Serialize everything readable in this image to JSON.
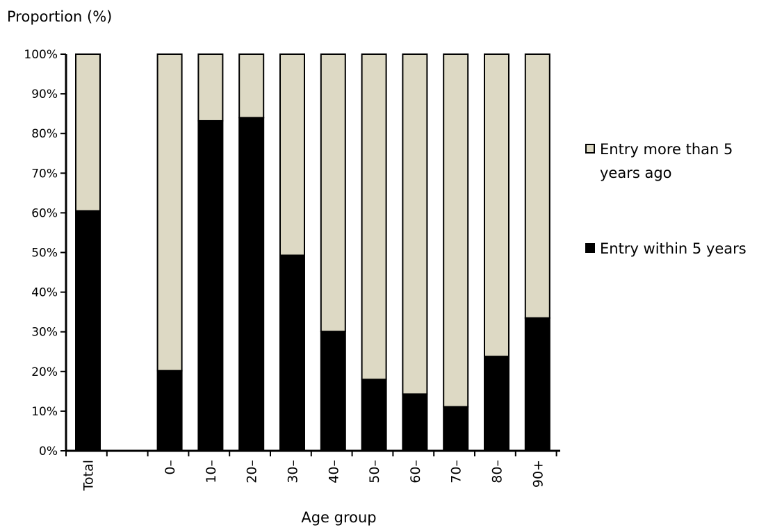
{
  "chart_data": {
    "type": "bar",
    "stacked": true,
    "ylabel": "Proportion (%)",
    "xlabel": "Age group",
    "ylim": [
      0,
      100
    ],
    "yticks": [
      "0%",
      "10%",
      "20%",
      "30%",
      "40%",
      "50%",
      "60%",
      "70%",
      "80%",
      "90%",
      "100%"
    ],
    "categories": [
      "Total",
      "0–",
      "10–",
      "20–",
      "30–",
      "40–",
      "50–",
      "60–",
      "70–",
      "80–",
      "90+"
    ],
    "series": [
      {
        "name": "Entry within 5 years",
        "color": "#000000",
        "values": [
          60.5,
          20.2,
          83.2,
          84.0,
          49.3,
          30.1,
          18.0,
          14.3,
          11.1,
          23.8,
          33.5
        ]
      },
      {
        "name": "Entry more than 5 years ago",
        "color": "#ddd9c4",
        "values": [
          39.5,
          79.8,
          16.8,
          16.0,
          50.7,
          69.9,
          82.0,
          85.7,
          88.9,
          76.2,
          66.5
        ]
      }
    ],
    "legend_items": [
      "Entry more than 5 years ago",
      "Entry within 5 years"
    ],
    "legend_position": "right",
    "grid": false
  }
}
